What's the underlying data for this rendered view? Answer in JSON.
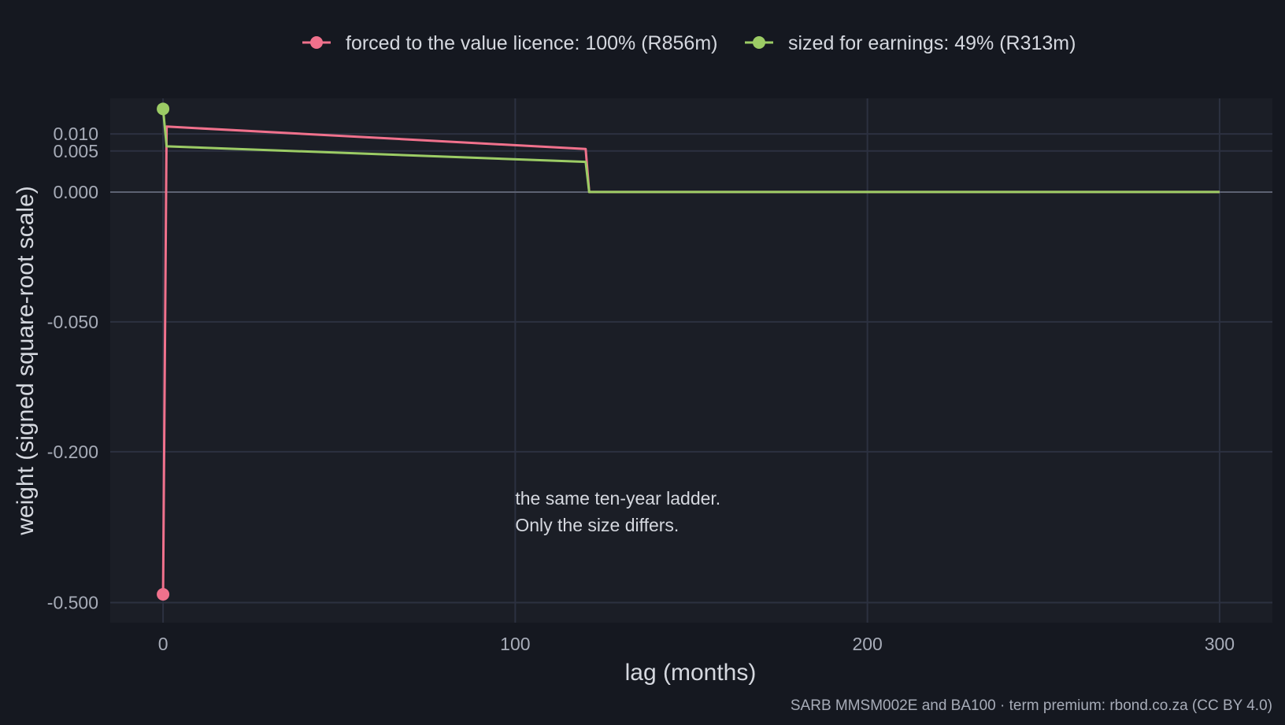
{
  "chart_data": {
    "type": "line",
    "title": "",
    "xlabel": "lag (months)",
    "ylabel": "weight (signed square-root scale)",
    "y_scale": "signed square-root",
    "xlim": [
      -15,
      315
    ],
    "ylim": [
      -0.55,
      0.026
    ],
    "x_ticks": [
      0,
      100,
      200,
      300
    ],
    "y_ticks": [
      {
        "value": -0.5,
        "label": "-0.500"
      },
      {
        "value": -0.2,
        "label": "-0.200"
      },
      {
        "value": -0.05,
        "label": "-0.050"
      },
      {
        "value": 0,
        "label": "0.000"
      },
      {
        "value": 0.005,
        "label": "0.005"
      },
      {
        "value": 0.01,
        "label": "0.010"
      }
    ],
    "grid": true,
    "legend_position": "top",
    "series": [
      {
        "name": "forced to the value licence: 100% (R856m)",
        "color": "#f0718c",
        "points": [
          [
            0,
            -0.48
          ],
          [
            1,
            0.0127
          ],
          [
            120,
            0.0055
          ],
          [
            121,
            0
          ],
          [
            300,
            0
          ]
        ],
        "marker_at": [
          0,
          -0.48
        ]
      },
      {
        "name": "sized for earnings: 49% (R313m)",
        "color": "#9ccc65",
        "points": [
          [
            0,
            0.0205
          ],
          [
            1,
            0.0062
          ],
          [
            120,
            0.0027
          ],
          [
            121,
            0
          ],
          [
            300,
            0
          ]
        ],
        "marker_at": [
          0,
          0.0205
        ]
      }
    ],
    "annotations": [
      {
        "lines": [
          "the same ten-year ladder.",
          "Only the size differs."
        ],
        "x": 100,
        "y": -0.29
      }
    ]
  },
  "caption": "SARB MMSM002E and BA100 · term premium: rbond.co.za (CC BY 4.0)"
}
